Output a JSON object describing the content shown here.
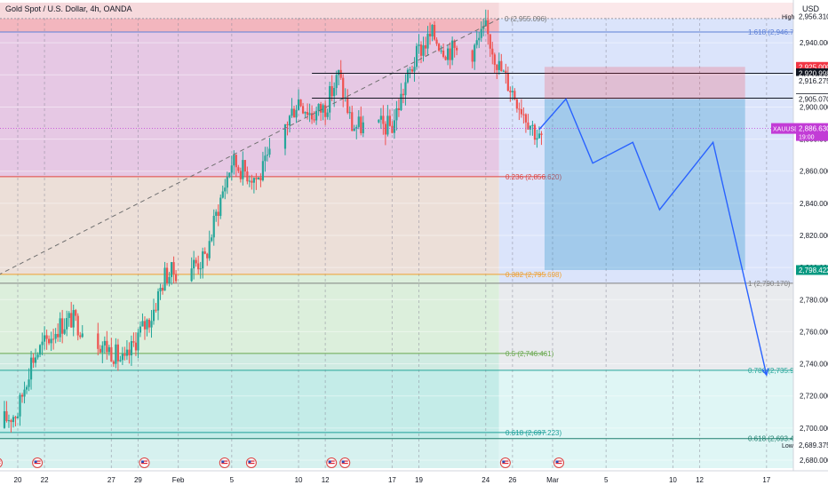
{
  "header": {
    "symbol_title": "Gold Spot / U.S. Dollar, 4h, OANDA",
    "currency": "USD"
  },
  "chart_data": {
    "type": "candlestick",
    "title": "Gold Spot / U.S. Dollar, 4h, OANDA",
    "ylabel": "USD",
    "ylim": [
      2675,
      2965
    ],
    "grid": true,
    "price_ticks": [
      2680,
      2700,
      2720,
      2740,
      2760,
      2780,
      2800,
      2820,
      2840,
      2860,
      2880,
      2900,
      2920,
      2940
    ],
    "price_tick_labels": [
      "2,680.000",
      "2,700.000",
      "2,720.000",
      "2,740.000",
      "2,760.000",
      "2,780.000",
      "2,800.000",
      "2,820.000",
      "2,840.000",
      "2,860.000",
      "2,880.000",
      "2,900.000",
      "2,920.000",
      "2,940.000"
    ],
    "date_axis": [
      {
        "label": "20",
        "date": "2025-01-20"
      },
      {
        "label": "22",
        "date": "2025-01-22"
      },
      {
        "label": "27",
        "date": "2025-01-27"
      },
      {
        "label": "29",
        "date": "2025-01-29"
      },
      {
        "label": "Feb",
        "date": "2025-02-01"
      },
      {
        "label": "5",
        "date": "2025-02-05"
      },
      {
        "label": "10",
        "date": "2025-02-10"
      },
      {
        "label": "12",
        "date": "2025-02-12"
      },
      {
        "label": "17",
        "date": "2025-02-17"
      },
      {
        "label": "19",
        "date": "2025-02-19"
      },
      {
        "label": "24",
        "date": "2025-02-24"
      },
      {
        "label": "26",
        "date": "2025-02-26"
      },
      {
        "label": "Mar",
        "date": "2025-03-01"
      },
      {
        "label": "5",
        "date": "2025-03-05"
      },
      {
        "label": "10",
        "date": "2025-03-10"
      },
      {
        "label": "12",
        "date": "2025-03-12"
      },
      {
        "label": "17",
        "date": "2025-03-17"
      }
    ],
    "anchors": [
      {
        "date": "2025-01-18",
        "close": 2700
      },
      {
        "date": "2025-01-20",
        "close": 2710
      },
      {
        "date": "2025-01-21",
        "close": 2742
      },
      {
        "date": "2025-01-23",
        "close": 2763
      },
      {
        "date": "2025-01-24",
        "close": 2768
      },
      {
        "date": "2025-01-27",
        "close": 2748
      },
      {
        "date": "2025-01-28",
        "close": 2740
      },
      {
        "date": "2025-01-29",
        "close": 2758
      },
      {
        "date": "2025-01-30",
        "close": 2770
      },
      {
        "date": "2025-01-31",
        "close": 2795
      },
      {
        "date": "2025-02-03",
        "close": 2805
      },
      {
        "date": "2025-02-04",
        "close": 2838
      },
      {
        "date": "2025-02-05",
        "close": 2866
      },
      {
        "date": "2025-02-06",
        "close": 2860
      },
      {
        "date": "2025-02-07",
        "close": 2855
      },
      {
        "date": "2025-02-10",
        "close": 2905
      },
      {
        "date": "2025-02-11",
        "close": 2895
      },
      {
        "date": "2025-02-12",
        "close": 2900
      },
      {
        "date": "2025-02-13",
        "close": 2920
      },
      {
        "date": "2025-02-14",
        "close": 2888
      },
      {
        "date": "2025-02-17",
        "close": 2888
      },
      {
        "date": "2025-02-18",
        "close": 2915
      },
      {
        "date": "2025-02-19",
        "close": 2935
      },
      {
        "date": "2025-02-20",
        "close": 2945
      },
      {
        "date": "2025-02-21",
        "close": 2936
      },
      {
        "date": "2025-02-23",
        "close": 2935
      },
      {
        "date": "2025-02-24",
        "close": 2948
      },
      {
        "date": "2025-02-25",
        "close": 2925
      },
      {
        "date": "2025-02-26",
        "close": 2910
      },
      {
        "date": "2025-02-27",
        "close": 2895
      },
      {
        "date": "2025-02-28",
        "close": 2880
      }
    ],
    "fib_levels": [
      {
        "label": "1.618 (2,946.719)",
        "value": 2946.719,
        "color": "#5c7fd6"
      },
      {
        "label": "0.236 (2,856.620)",
        "value": 2856.62,
        "color": "#e0443f"
      },
      {
        "label": "0.382 (2,795.698)",
        "value": 2795.698,
        "color": "#f0a030"
      },
      {
        "label": "1 (2,790.170)",
        "value": 2790.17,
        "color": "#808080"
      },
      {
        "label": "0.5 (2,746.461)",
        "value": 2746.461,
        "color": "#6aa84f"
      },
      {
        "label": "0.786 (2,735.961)",
        "value": 2735.961,
        "color": "#26a69a"
      },
      {
        "label": "0.618 (2,697.223)",
        "value": 2697.223,
        "color": "#1fa09a"
      },
      {
        "label": "0.618 (2,693.404)",
        "value": 2693.404,
        "color": "#1e7f6e"
      },
      {
        "label": "0 (2,955.096)",
        "value": 2955.096,
        "color": "#787878"
      }
    ],
    "price_labels": [
      {
        "text": "2,956.310",
        "value": 2956.31,
        "style": "plain",
        "tag": "High"
      },
      {
        "text": "2,925.000",
        "value": 2925,
        "style": "red"
      },
      {
        "text": "2,920.998",
        "value": 2920.998,
        "style": "dark"
      },
      {
        "text": "2,916.275",
        "value": 2916.275,
        "style": "plain"
      },
      {
        "text": "2,905.489",
        "value": 2905.489,
        "style": "dark"
      },
      {
        "text": "2,905.070",
        "value": 2905.07,
        "style": "plain"
      },
      {
        "text": "2,798.422",
        "value": 2798.422,
        "style": "green"
      },
      {
        "text": "2,689.375",
        "value": 2689.375,
        "style": "plain",
        "tag": "Low"
      }
    ],
    "current_price": {
      "symbol": "XAUUSD",
      "price": "2,886.630",
      "countdown": "19:00",
      "value": 2886.63
    },
    "horizontal_lines": [
      2920.998,
      2905.489
    ],
    "position_tool": {
      "start": "2025-02-28",
      "end": "2025-03-15",
      "entry": 2905,
      "stop": 2925,
      "target": 2798.422
    },
    "projection": [
      {
        "date": "2025-02-28",
        "value": 2886
      },
      {
        "date": "2025-03-02",
        "value": 2905
      },
      {
        "date": "2025-03-04",
        "value": 2865
      },
      {
        "date": "2025-03-07",
        "value": 2878
      },
      {
        "date": "2025-03-09",
        "value": 2836
      },
      {
        "date": "2025-03-13",
        "value": 2878
      },
      {
        "date": "2025-03-17",
        "value": 2733
      }
    ],
    "trend_line": [
      {
        "date": "2025-01-18",
        "value": 2793
      },
      {
        "date": "2025-02-25",
        "value": 2955
      }
    ],
    "event_markers": [
      "2025-01-19",
      "2025-01-22",
      "2025-01-30",
      "2025-02-05",
      "2025-02-07",
      "2025-02-13",
      "2025-02-14",
      "2025-02-26",
      "2025-03-02"
    ]
  }
}
